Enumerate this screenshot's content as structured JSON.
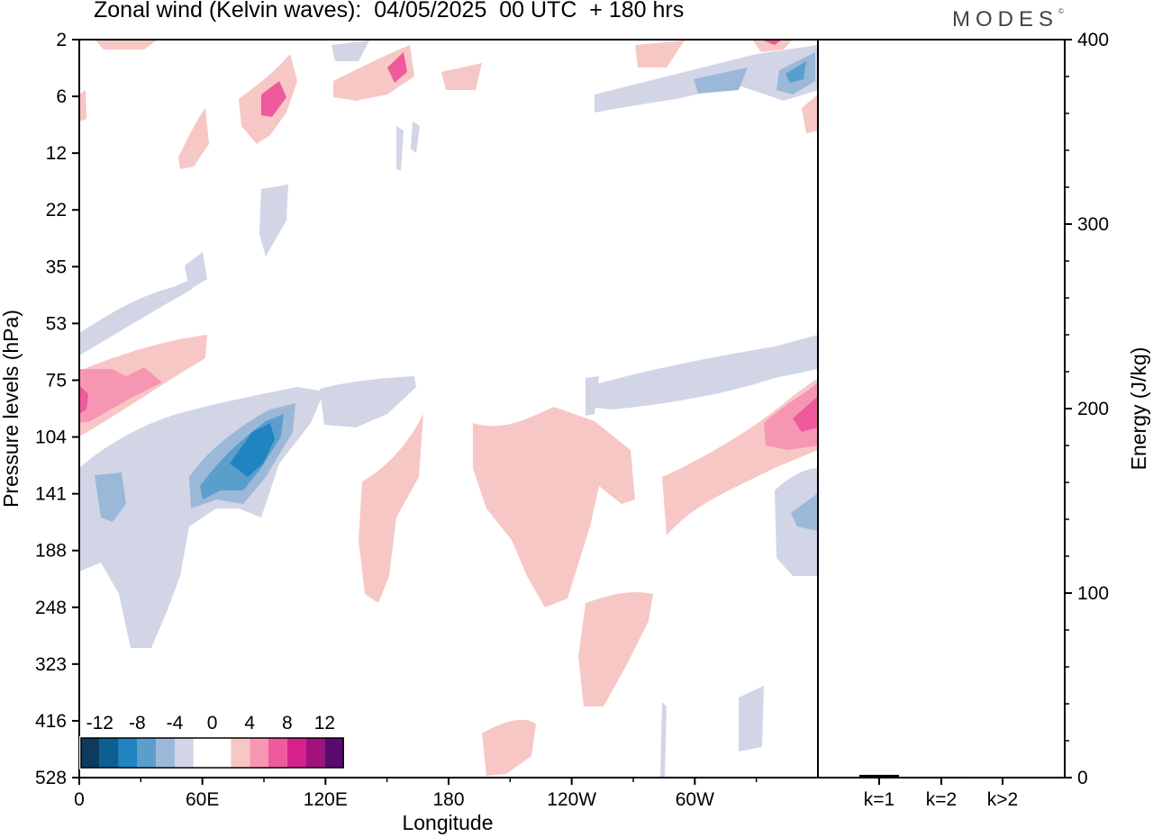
{
  "title": "Zonal wind (Kelvin waves):  04/05/2025  00 UTC  + 180 hrs",
  "brand": "MODES",
  "brand_mark": "©",
  "colors": {
    "blue": [
      "#0b3b5e",
      "#0d5e92",
      "#1f84bf",
      "#5a9fcb",
      "#9bb8d9",
      "#d1d5e6"
    ],
    "white": "#ffffff",
    "pink": [
      "#f7c7c5",
      "#f796b3",
      "#ee5a9b",
      "#d6218c",
      "#a1127d",
      "#5b0a6f"
    ]
  },
  "chart_data": [
    {
      "type": "heatmap",
      "title": "Zonal wind (Kelvin waves):  04/05/2025  00 UTC  + 180 hrs",
      "xlabel": "Longitude",
      "ylabel": "Pressure levels (hPa)",
      "x_ticks": [
        "0",
        "60E",
        "120E",
        "180",
        "120W",
        "60W"
      ],
      "y_ticks": [
        "2",
        "6",
        "12",
        "22",
        "35",
        "53",
        "75",
        "104",
        "141",
        "188",
        "248",
        "323",
        "416",
        "528"
      ],
      "colorbar_labels": [
        "-12",
        "-8",
        "-4",
        "0",
        "4",
        "8",
        "12"
      ],
      "grid": false,
      "legend_placement": "bottom-left"
    },
    {
      "type": "bar",
      "ylabel": "Energy (J/kg)",
      "categories": [
        "k=1",
        "k=2",
        "k>2"
      ],
      "values": [
        1.5,
        0.5,
        0.3
      ],
      "ylim": [
        0,
        400
      ],
      "y_ticks": [
        "0",
        "100",
        "200",
        "300",
        "400"
      ]
    }
  ]
}
